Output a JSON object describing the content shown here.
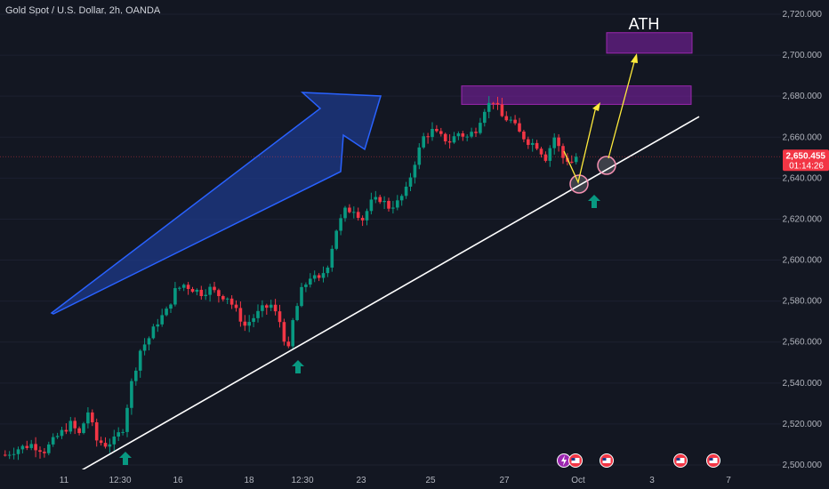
{
  "header": {
    "symbol": "Gold Spot / U.S. Dollar, 2h, OANDA"
  },
  "colors": {
    "background": "#131722",
    "up": "#089981",
    "down": "#f23645",
    "zone_fill": "#7b1fa2",
    "zone_stroke": "#9c27b0",
    "trendline": "#ffffff",
    "projection": "#ffeb3b",
    "big_arrow": "#1e3a8a",
    "signal_arrow": "#089981",
    "price_label_bg": "#f23645"
  },
  "chart_data": {
    "type": "candlestick",
    "title": "Gold Spot / U.S. Dollar, 2h, OANDA",
    "ylim": [
      2495,
      2730
    ],
    "y_ticks": [
      "2,500.000",
      "2,520.000",
      "2,540.000",
      "2,560.000",
      "2,580.000",
      "2,600.000",
      "2,620.000",
      "2,640.000",
      "2,660.000",
      "2,680.000",
      "2,700.000",
      "2,720.000"
    ],
    "x_ticks": [
      "11",
      "12:30",
      "16",
      "18",
      "12:30",
      "23",
      "25",
      "27",
      "Oct",
      "3",
      "7"
    ],
    "current_price": "2,650.455",
    "countdown": "01:14:26",
    "annotation_text": "ATH",
    "price_path": [
      [
        0,
        2505
      ],
      [
        3,
        2508
      ],
      [
        6,
        2510
      ],
      [
        9,
        2507
      ],
      [
        12,
        2514
      ],
      [
        15,
        2520
      ],
      [
        17,
        2515
      ],
      [
        19,
        2526
      ],
      [
        21,
        2512
      ],
      [
        23,
        2510
      ],
      [
        25,
        2512
      ],
      [
        27,
        2518
      ],
      [
        29,
        2540
      ],
      [
        31,
        2556
      ],
      [
        33,
        2562
      ],
      [
        35,
        2570
      ],
      [
        37,
        2575
      ],
      [
        39,
        2585
      ],
      [
        41,
        2588
      ],
      [
        43,
        2586
      ],
      [
        45,
        2584
      ],
      [
        47,
        2586
      ],
      [
        49,
        2583
      ],
      [
        51,
        2582
      ],
      [
        53,
        2575
      ],
      [
        55,
        2568
      ],
      [
        57,
        2572
      ],
      [
        59,
        2576
      ],
      [
        61,
        2578
      ],
      [
        63,
        2570
      ],
      [
        64,
        2562
      ],
      [
        65,
        2556
      ],
      [
        66,
        2570
      ],
      [
        68,
        2585
      ],
      [
        70,
        2592
      ],
      [
        72,
        2590
      ],
      [
        74,
        2598
      ],
      [
        76,
        2615
      ],
      [
        78,
        2624
      ],
      [
        80,
        2625
      ],
      [
        82,
        2620
      ],
      [
        84,
        2628
      ],
      [
        86,
        2630
      ],
      [
        88,
        2626
      ],
      [
        90,
        2628
      ],
      [
        92,
        2634
      ],
      [
        94,
        2648
      ],
      [
        96,
        2660
      ],
      [
        98,
        2663
      ],
      [
        100,
        2660
      ],
      [
        102,
        2658
      ],
      [
        104,
        2662
      ],
      [
        106,
        2660
      ],
      [
        108,
        2664
      ],
      [
        110,
        2674
      ],
      [
        112,
        2678
      ],
      [
        114,
        2670
      ],
      [
        116,
        2668
      ],
      [
        118,
        2662
      ],
      [
        120,
        2658
      ],
      [
        122,
        2656
      ],
      [
        124,
        2650
      ],
      [
        126,
        2660
      ],
      [
        128,
        2650
      ],
      [
        130,
        2648
      ],
      [
        131,
        2650.455
      ]
    ],
    "trendline": {
      "from": [
        "Sep 11",
        2498
      ],
      "to": [
        "Oct 7",
        2670
      ]
    },
    "zones": [
      {
        "from": "Sep 26",
        "to": "Oct 5",
        "low": 2676,
        "high": 2685
      },
      {
        "from": "Oct 3",
        "to": "Oct 5",
        "low": 2701,
        "high": 2711
      }
    ]
  }
}
